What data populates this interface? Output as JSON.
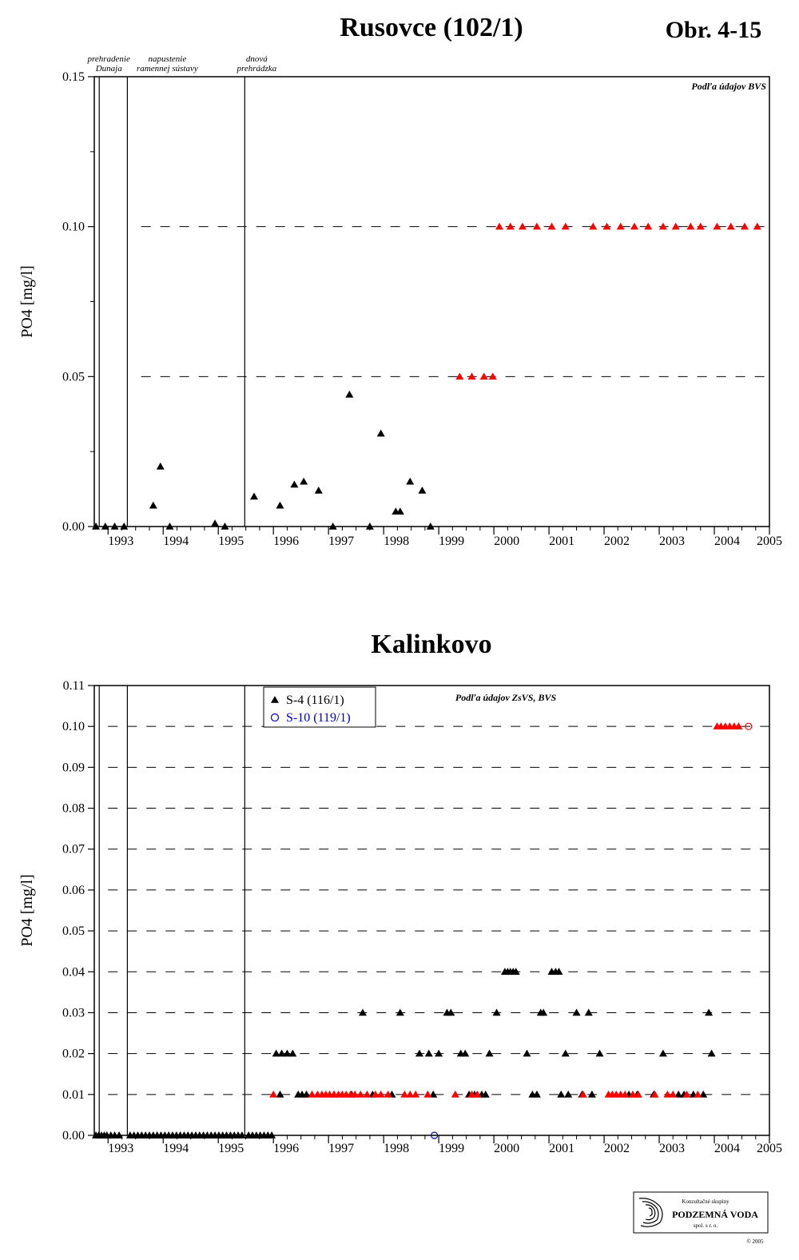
{
  "figure_label": "Obr. 4-15",
  "logo": {
    "line1": "Konzultačné skupiny",
    "line2": "PODZEMNÁ VODA",
    "line3": "spol. s r. o.",
    "copyright": "© 2005"
  },
  "colors": {
    "black_marker": "#000000",
    "red_marker": "#ff0000",
    "blue_marker": "#0000cc"
  },
  "chart_data": [
    {
      "type": "scatter",
      "title": "Rusovce (102/1)",
      "ylabel": "PO4 [mg/l]",
      "xlabel": "",
      "source_note": "Podľa údajov BVS",
      "xlim": [
        1992.75,
        2005.0
      ],
      "ylim": [
        0,
        0.15
      ],
      "yticks": [
        0.0,
        0.05,
        0.1,
        0.15
      ],
      "ytick_labels": [
        "0.00",
        "0.05",
        "0.10",
        "0.15"
      ],
      "yminor": [
        0.025,
        0.075,
        0.125
      ],
      "xtick_labels": [
        "1993",
        "1994",
        "1995",
        "1996",
        "1997",
        "1998",
        "1999",
        "2000",
        "2001",
        "2002",
        "2003",
        "2004",
        "2005"
      ],
      "grid": "dashed horizontal at 0.05 and 0.10 (from 1993.6)",
      "events": [
        {
          "x": 1992.84,
          "label": [
            "prehradenie",
            "Dunaja"
          ]
        },
        {
          "x": 1993.35,
          "label": [
            "napustenie",
            "ramennej sústavy"
          ]
        },
        {
          "x": 1995.48,
          "label": [
            "dnová",
            "prehrádzka"
          ]
        }
      ],
      "series": [
        {
          "marker": "triangle",
          "color": "#000000",
          "x": [
            1992.78,
            1992.95,
            1993.12,
            1993.29,
            1993.82,
            1993.95,
            1994.12,
            1994.94,
            1995.12,
            1995.65,
            1996.12,
            1996.38,
            1996.55,
            1996.82,
            1997.08,
            1997.38,
            1997.75,
            1997.95,
            1998.22,
            1998.3,
            1998.48,
            1998.7,
            1998.85
          ],
          "y": [
            0.0,
            0.0,
            0.0,
            0.0,
            0.007,
            0.02,
            0.0,
            0.001,
            0.0,
            0.01,
            0.007,
            0.014,
            0.015,
            0.012,
            0.0,
            0.044,
            0.0,
            0.031,
            0.005,
            0.005,
            0.015,
            0.012,
            0.0
          ]
        },
        {
          "marker": "triangle",
          "color": "#ff0000",
          "x": [
            1999.38,
            1999.6,
            1999.82,
            1999.98,
            2000.1,
            2000.3,
            2000.52,
            2000.78,
            2001.05,
            2001.3,
            2001.8,
            2002.05,
            2002.3,
            2002.55,
            2002.8,
            2003.07,
            2003.3,
            2003.57,
            2003.75,
            2004.05,
            2004.3,
            2004.55,
            2004.78
          ],
          "y": [
            0.05,
            0.05,
            0.05,
            0.05,
            0.1,
            0.1,
            0.1,
            0.1,
            0.1,
            0.1,
            0.1,
            0.1,
            0.1,
            0.1,
            0.1,
            0.1,
            0.1,
            0.1,
            0.1,
            0.1,
            0.1,
            0.1,
            0.1
          ]
        }
      ]
    },
    {
      "type": "scatter",
      "title": "Kalinkovo",
      "ylabel": "PO4 [mg/l]",
      "xlabel": "",
      "source_note": "Podľa údajov ZsVS, BVS",
      "xlim": [
        1992.75,
        2005.0
      ],
      "ylim": [
        0,
        0.11
      ],
      "yticks": [
        0.0,
        0.01,
        0.02,
        0.03,
        0.04,
        0.05,
        0.06,
        0.07,
        0.08,
        0.09,
        0.1,
        0.11
      ],
      "ytick_labels": [
        "0.00",
        "0.01",
        "0.02",
        "0.03",
        "0.04",
        "0.05",
        "0.06",
        "0.07",
        "0.08",
        "0.09",
        "0.10",
        "0.11"
      ],
      "xtick_labels": [
        "1993",
        "1994",
        "1995",
        "1996",
        "1997",
        "1998",
        "1999",
        "2000",
        "2001",
        "2002",
        "2003",
        "2004",
        "2005"
      ],
      "grid": "dashed horizontal at each 0.01 step",
      "events": [
        {
          "x": 1992.84
        },
        {
          "x": 1993.35
        },
        {
          "x": 1995.48
        }
      ],
      "legend": [
        {
          "label": "S-4 (116/1)",
          "marker": "triangle",
          "color": "#000000"
        },
        {
          "label": "S-10 (119/1)",
          "marker": "circle",
          "color": "#0000cc"
        }
      ],
      "legend_position": "top-left",
      "series": [
        {
          "name": "S-4 (116/1)",
          "marker": "triangle",
          "color": "#000000",
          "x": [
            1992.78,
            1992.83,
            1992.88,
            1992.93,
            1992.98,
            1993.05,
            1993.12,
            1993.2,
            1993.4,
            1993.47,
            1993.54,
            1993.61,
            1993.68,
            1993.75,
            1993.82,
            1993.89,
            1993.96,
            1994.03,
            1994.1,
            1994.17,
            1994.24,
            1994.31,
            1994.38,
            1994.45,
            1994.52,
            1994.59,
            1994.66,
            1994.73,
            1994.8,
            1994.87,
            1994.94,
            1995.01,
            1995.08,
            1995.15,
            1995.22,
            1995.29,
            1995.36,
            1995.43,
            1995.55,
            1995.62,
            1995.69,
            1995.76,
            1995.83,
            1995.9,
            1995.97,
            1996.05,
            1996.15,
            1996.25,
            1996.35,
            1996.12,
            1996.45,
            1996.52,
            1996.6,
            1997.1,
            1997.42,
            1997.62,
            1997.8,
            1998.15,
            1998.3,
            1998.65,
            1998.82,
            1998.9,
            1999.0,
            1999.15,
            1999.22,
            1999.4,
            1999.48,
            1999.55,
            1999.65,
            1999.78,
            1999.85,
            1999.92,
            2000.05,
            2000.2,
            2000.25,
            2000.3,
            2000.35,
            2000.4,
            2000.6,
            2000.7,
            2000.78,
            2000.85,
            2000.9,
            2001.05,
            2001.12,
            2001.18,
            2001.22,
            2001.3,
            2001.35,
            2001.5,
            2001.6,
            2001.72,
            2001.78,
            2001.92,
            2002.45,
            2002.6,
            2002.9,
            2003.07,
            2003.35,
            2003.45,
            2003.62,
            2003.8,
            2003.9,
            2003.95
          ],
          "y": [
            0,
            0,
            0,
            0,
            0,
            0,
            0,
            0,
            0,
            0,
            0,
            0,
            0,
            0,
            0,
            0,
            0,
            0,
            0,
            0,
            0,
            0,
            0,
            0,
            0,
            0,
            0,
            0,
            0,
            0,
            0,
            0,
            0,
            0,
            0,
            0,
            0,
            0,
            0,
            0,
            0,
            0,
            0,
            0,
            0,
            0.02,
            0.02,
            0.02,
            0.02,
            0.01,
            0.01,
            0.01,
            0.01,
            0.01,
            0.01,
            0.03,
            0.01,
            0.01,
            0.03,
            0.02,
            0.02,
            0.01,
            0.02,
            0.03,
            0.03,
            0.02,
            0.02,
            0.01,
            0.01,
            0.01,
            0.01,
            0.02,
            0.03,
            0.04,
            0.04,
            0.04,
            0.04,
            0.04,
            0.02,
            0.01,
            0.01,
            0.03,
            0.03,
            0.04,
            0.04,
            0.04,
            0.01,
            0.02,
            0.01,
            0.03,
            0.01,
            0.03,
            0.01,
            0.02,
            0.01,
            0.01,
            0.01,
            0.02,
            0.01,
            0.01,
            0.01,
            0.01,
            0.03,
            0.02
          ]
        },
        {
          "marker": "triangle",
          "color": "#ff0000",
          "x": [
            1996.0,
            1996.7,
            1996.8,
            1996.88,
            1996.95,
            1997.02,
            1997.1,
            1997.18,
            1997.25,
            1997.32,
            1997.4,
            1997.48,
            1997.58,
            1997.7,
            1997.85,
            1997.95,
            1998.08,
            1998.38,
            1998.48,
            1998.58,
            1998.8,
            1999.3,
            1999.6,
            1999.7,
            2001.62,
            2002.08,
            2002.15,
            2002.22,
            2002.3,
            2002.38,
            2002.52,
            2002.62,
            2002.92,
            2003.15,
            2003.25,
            2003.5,
            2003.7,
            2004.05,
            2004.12,
            2004.2,
            2004.28,
            2004.36,
            2004.44
          ],
          "y": [
            0.01,
            0.01,
            0.01,
            0.01,
            0.01,
            0.01,
            0.01,
            0.01,
            0.01,
            0.01,
            0.01,
            0.01,
            0.01,
            0.01,
            0.01,
            0.01,
            0.01,
            0.01,
            0.01,
            0.01,
            0.01,
            0.01,
            0.01,
            0.01,
            0.01,
            0.01,
            0.01,
            0.01,
            0.01,
            0.01,
            0.01,
            0.01,
            0.01,
            0.01,
            0.01,
            0.01,
            0.01,
            0.1,
            0.1,
            0.1,
            0.1,
            0.1,
            0.1
          ]
        },
        {
          "name": "S-10 (119/1)",
          "marker": "circle",
          "color": "#0000cc",
          "x": [
            1998.92
          ],
          "y": [
            0.0
          ]
        },
        {
          "marker": "circle",
          "color": "#ff0000",
          "x": [
            2004.62
          ],
          "y": [
            0.1
          ]
        }
      ]
    }
  ]
}
